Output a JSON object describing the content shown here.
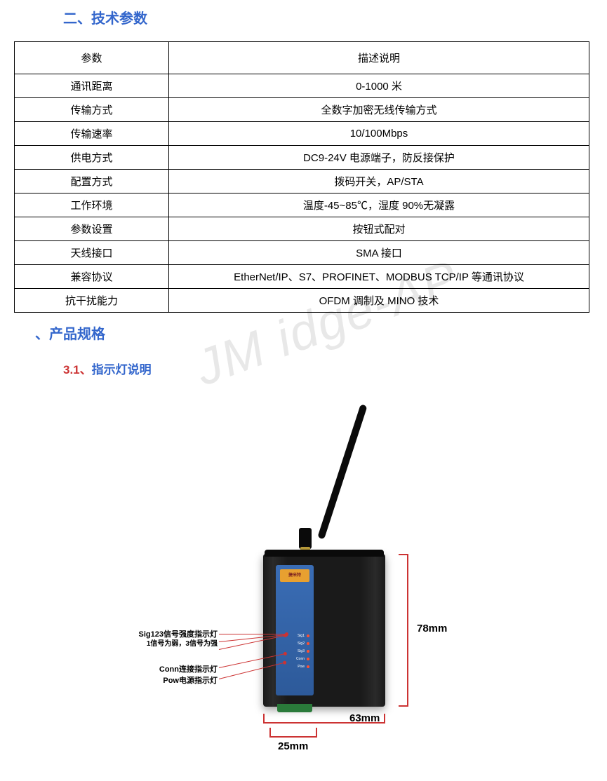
{
  "sections": {
    "tech_params_title": "二、技术参数",
    "product_spec_title": "、产品规格",
    "indicator_title_num": "3.1、",
    "indicator_title_text": "指示灯说明"
  },
  "watermark_text": "JM   idge-AP",
  "table": {
    "header": {
      "param": "参数",
      "desc": "描述说明"
    },
    "rows": [
      {
        "param": "通讯距离",
        "desc": "0-1000 米"
      },
      {
        "param": "传输方式",
        "desc": "全数字加密无线传输方式"
      },
      {
        "param": "传输速率",
        "desc": "10/100Mbps"
      },
      {
        "param": "供电方式",
        "desc": "DC9-24V 电源端子，防反接保护"
      },
      {
        "param": "配置方式",
        "desc": "拨码开关，AP/STA"
      },
      {
        "param": "工作环境",
        "desc": "温度-45~85℃，湿度 90%无凝露"
      },
      {
        "param": "参数设置",
        "desc": "按钮式配对"
      },
      {
        "param": "天线接口",
        "desc": "SMA 接口"
      },
      {
        "param": "兼容协议",
        "desc": "EtherNet/IP、S7、PROFINET、MODBUS TCP/IP 等通讯协议"
      },
      {
        "param": "抗干扰能力",
        "desc": "OFDM 调制及 MINO 技术"
      }
    ]
  },
  "diagram": {
    "brand": "捷米特",
    "leds": [
      {
        "name": "Sig1"
      },
      {
        "name": "Sig2"
      },
      {
        "name": "Sig3"
      },
      {
        "name": "Conn"
      },
      {
        "name": "Pow"
      }
    ],
    "callouts": {
      "sig": {
        "line1": "Sig123信号强度指示灯",
        "line2": "1信号为弱，3信号为强"
      },
      "conn": "Conn连接指示灯",
      "pow": "Pow电源指示灯"
    },
    "dimensions": {
      "height": "78mm",
      "width": "63mm",
      "depth": "25mm"
    },
    "colors": {
      "accent": "#cc3333",
      "heading": "#3366cc",
      "device_body": "#1a1a1a",
      "faceplate": "#3a6db5",
      "brand_bg": "#e8a030"
    }
  }
}
